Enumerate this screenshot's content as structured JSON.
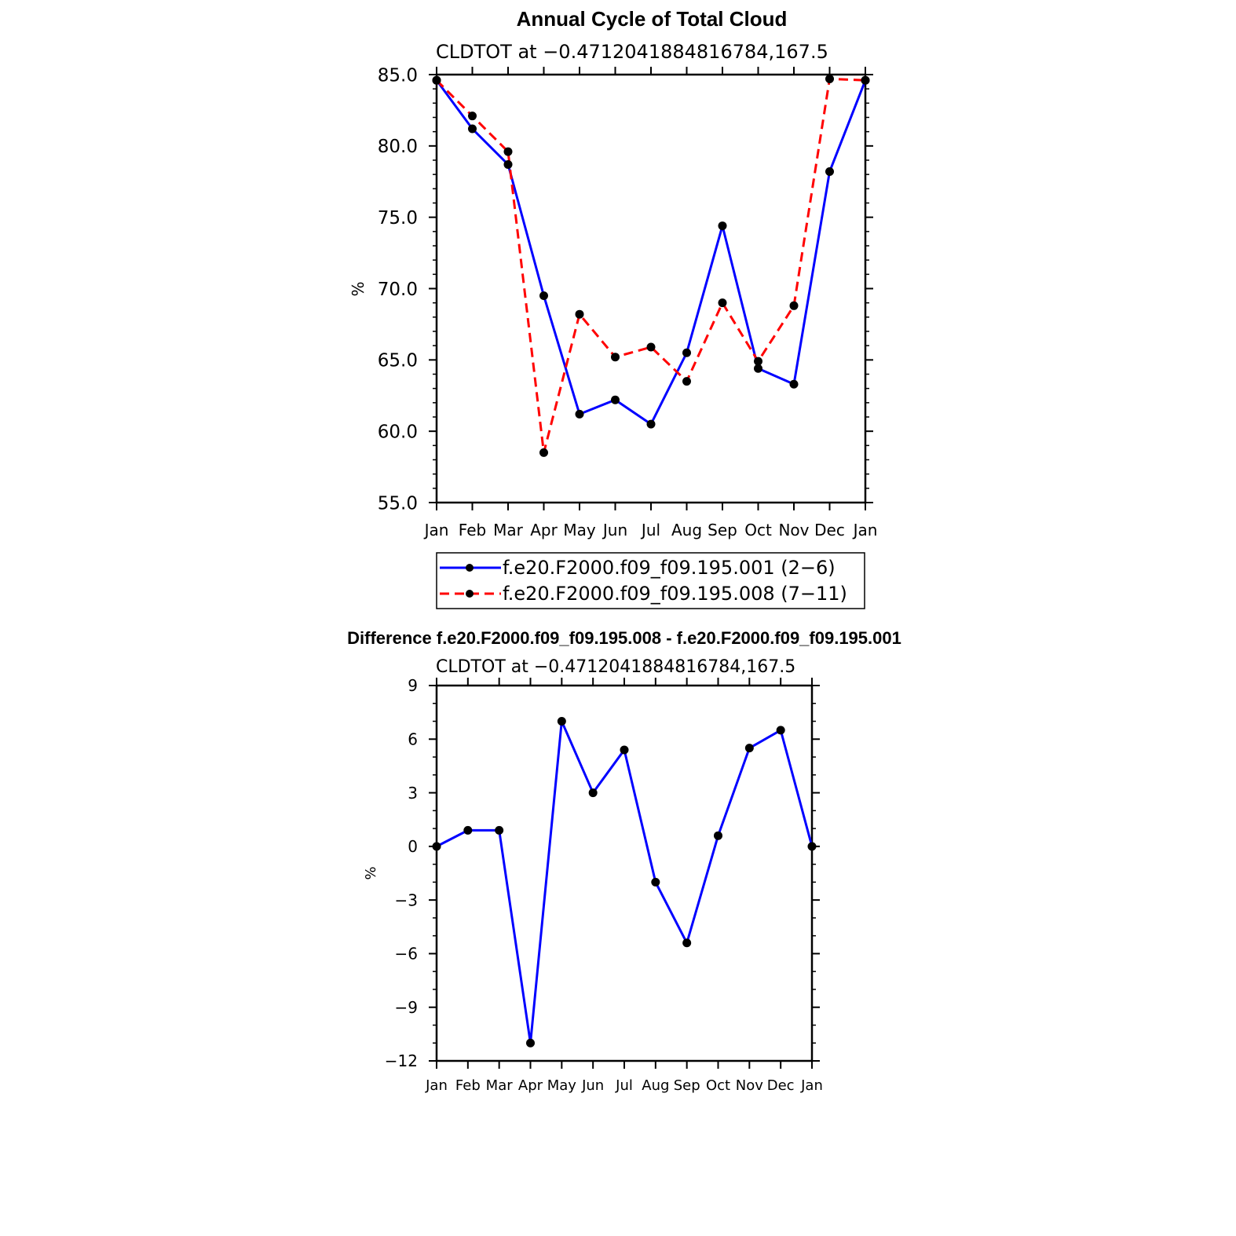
{
  "charts": [
    {
      "title": "Annual Cycle of Total Cloud",
      "subtitle": "CLDTOT  at  −0.4712041884816784,167.5",
      "ylabel": "%",
      "ytick_labels": [
        "55.0",
        "60.0",
        "65.0",
        "70.0",
        "75.0",
        "80.0",
        "85.0"
      ],
      "legend": [
        "f.e20.F2000.f09_f09.195.001 (2−6)",
        "f.e20.F2000.f09_f09.195.008 (7−11)"
      ]
    },
    {
      "title": "Difference f.e20.F2000.f09_f09.195.008 - f.e20.F2000.f09_f09.195.001",
      "subtitle": "CLDTOT  at  −0.4712041884816784,167.5",
      "ylabel": "%",
      "ytick_labels": [
        "−12",
        "−9",
        "−6",
        "−3",
        "0",
        "3",
        "6",
        "9"
      ]
    }
  ],
  "chart_data": [
    {
      "type": "line",
      "title": "Annual Cycle of Total Cloud",
      "subtitle": "CLDTOT  at  −0.4712041884816784,167.5",
      "xlabel": "",
      "ylabel": "%",
      "categories": [
        "Jan",
        "Feb",
        "Mar",
        "Apr",
        "May",
        "Jun",
        "Jul",
        "Aug",
        "Sep",
        "Oct",
        "Nov",
        "Dec",
        "Jan"
      ],
      "ylim": [
        55,
        85
      ],
      "yticks": [
        55,
        60,
        65,
        70,
        75,
        80,
        85
      ],
      "series": [
        {
          "name": "f.e20.F2000.f09_f09.195.001 (2−6)",
          "color": "#0000ff",
          "dash": "solid",
          "values": [
            84.6,
            81.2,
            78.7,
            69.5,
            61.2,
            62.2,
            60.5,
            65.5,
            74.4,
            64.4,
            63.3,
            78.2,
            84.6
          ]
        },
        {
          "name": "f.e20.F2000.f09_f09.195.008 (7−11)",
          "color": "#ff0000",
          "dash": "dashed",
          "values": [
            84.6,
            82.1,
            79.6,
            58.5,
            68.2,
            65.2,
            65.9,
            63.5,
            69.0,
            64.9,
            68.8,
            84.7,
            84.6
          ]
        }
      ],
      "legend_position": "bottom"
    },
    {
      "type": "line",
      "title": "Difference f.e20.F2000.f09_f09.195.008 - f.e20.F2000.f09_f09.195.001",
      "subtitle": "CLDTOT  at  −0.4712041884816784,167.5",
      "xlabel": "",
      "ylabel": "%",
      "categories": [
        "Jan",
        "Feb",
        "Mar",
        "Apr",
        "May",
        "Jun",
        "Jul",
        "Aug",
        "Sep",
        "Oct",
        "Nov",
        "Dec",
        "Jan"
      ],
      "ylim": [
        -12,
        9
      ],
      "yticks": [
        -12,
        -9,
        -6,
        -3,
        0,
        3,
        6,
        9
      ],
      "series": [
        {
          "name": "difference",
          "color": "#0000ff",
          "dash": "solid",
          "values": [
            0.0,
            0.9,
            0.9,
            -11.0,
            7.0,
            3.0,
            5.4,
            -2.0,
            -5.4,
            0.6,
            5.5,
            6.5,
            0.0
          ]
        }
      ]
    }
  ]
}
